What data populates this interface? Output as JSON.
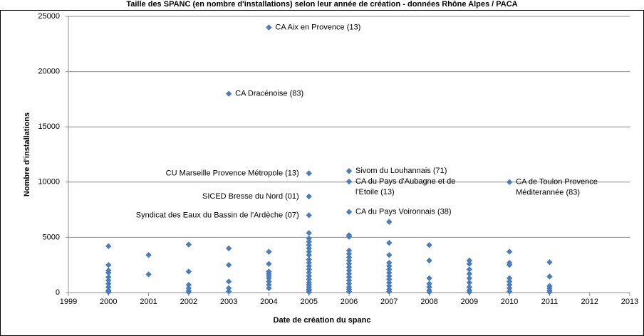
{
  "chart_data": {
    "type": "scatter",
    "title": "Taille des SPANC (en nombre d'installations) selon leur année de création - données Rhône Alpes / PACA",
    "x_label": "Date de création du spanc",
    "y_label": "Nombre d'installations",
    "xlim": [
      1999,
      2013
    ],
    "xticks": [
      1999,
      2000,
      2001,
      2002,
      2003,
      2004,
      2005,
      2006,
      2007,
      2008,
      2009,
      2010,
      2011,
      2012,
      2013
    ],
    "ylim": [
      0,
      25000
    ],
    "yticks": [
      0,
      5000,
      10000,
      15000,
      20000,
      25000
    ],
    "grid": true,
    "series": [
      {
        "color": "#4a7ebb",
        "x": [
          2000,
          2000,
          2000,
          2000,
          2000,
          2000,
          2000,
          2000,
          2000,
          2000,
          2000,
          2001,
          2001,
          2002,
          2002,
          2002,
          2002,
          2002,
          2002,
          2003,
          2003,
          2003,
          2003,
          2003,
          2004,
          2004,
          2004,
          2004,
          2004,
          2004,
          2004,
          2004,
          2004,
          2005,
          2005,
          2005,
          2005,
          2005,
          2005,
          2005,
          2005,
          2005,
          2005,
          2005,
          2005,
          2005,
          2005,
          2005,
          2005,
          2005,
          2005,
          2005,
          2005,
          2006,
          2006,
          2006,
          2006,
          2006,
          2006,
          2006,
          2006,
          2006,
          2006,
          2006,
          2006,
          2006,
          2006,
          2006,
          2006,
          2007,
          2007,
          2007,
          2007,
          2007,
          2007,
          2007,
          2007,
          2007,
          2007,
          2007,
          2007,
          2007,
          2008,
          2008,
          2008,
          2008,
          2008,
          2008,
          2008,
          2009,
          2009,
          2009,
          2009,
          2009,
          2009,
          2009,
          2009,
          2009,
          2010,
          2010,
          2010,
          2010,
          2010,
          2010,
          2010,
          2010,
          2011,
          2011,
          2011,
          2011,
          2011,
          2011
        ],
        "values": [
          4200,
          2500,
          2000,
          1800,
          1400,
          1100,
          800,
          500,
          200,
          100,
          50,
          3400,
          1650,
          4350,
          1900,
          700,
          400,
          150,
          50,
          4000,
          2500,
          1000,
          400,
          100,
          3700,
          2600,
          1900,
          1700,
          1500,
          1300,
          1000,
          700,
          400,
          5400,
          4900,
          4600,
          4300,
          4000,
          3700,
          3400,
          3000,
          2700,
          2400,
          2100,
          1800,
          1500,
          1200,
          900,
          700,
          500,
          300,
          150,
          50,
          5200,
          5050,
          3800,
          3500,
          3200,
          2900,
          2600,
          2300,
          2000,
          1700,
          1400,
          1100,
          800,
          500,
          300,
          100,
          6400,
          4500,
          3400,
          2700,
          2400,
          2100,
          1800,
          1500,
          1200,
          900,
          600,
          300,
          100,
          4300,
          2900,
          1300,
          800,
          500,
          200,
          50,
          2900,
          2600,
          2100,
          1700,
          1300,
          900,
          500,
          200,
          50,
          3700,
          2700,
          2500,
          1300,
          1000,
          700,
          400,
          100,
          2750,
          1450,
          600,
          400,
          200,
          50
        ]
      },
      {
        "color": "#4a7ebb",
        "x": [
          2004,
          2003,
          2005,
          2005,
          2005,
          2006,
          2006,
          2006,
          2010
        ],
        "values": [
          24000,
          18000,
          10800,
          8700,
          7000,
          11000,
          10050,
          7300,
          10000
        ],
        "labels": [
          [
            "CA Aix en Provence (13)"
          ],
          [
            "CA Dracénoise (83)"
          ],
          [
            "CU Marseille Provence Métropole (13)"
          ],
          [
            "SICED Bresse du Nord (01)"
          ],
          [
            "Syndicat des Eaux du Bassin de l'Ardèche (07)"
          ],
          [
            "Sivom du Louhannais (71)"
          ],
          [
            "CA du Pays d'Aubagne et de",
            "l'Etoile (13)"
          ],
          [
            "CA du Pays Voironnais (38)"
          ],
          [
            "CA de Toulon Provence",
            "Méditerannée (83)"
          ]
        ]
      }
    ]
  }
}
